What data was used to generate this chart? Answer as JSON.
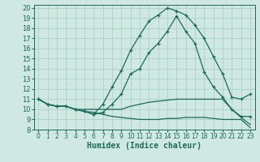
{
  "xlabel": "Humidex (Indice chaleur)",
  "xlim": [
    -0.5,
    23.5
  ],
  "ylim": [
    8,
    20.3
  ],
  "yticks": [
    8,
    9,
    10,
    11,
    12,
    13,
    14,
    15,
    16,
    17,
    18,
    19,
    20
  ],
  "xticks": [
    0,
    1,
    2,
    3,
    4,
    5,
    6,
    7,
    8,
    9,
    10,
    11,
    12,
    13,
    14,
    15,
    16,
    17,
    18,
    19,
    20,
    21,
    22,
    23
  ],
  "bg_color": "#cfe8e2",
  "grid_color": "#b0d4cc",
  "line_color": "#1a6b5a",
  "lines": [
    {
      "x": [
        0,
        1,
        2,
        3,
        4,
        5,
        6,
        7,
        8,
        9,
        10,
        11,
        12,
        13,
        14,
        15,
        16,
        17,
        18,
        19,
        20,
        21,
        22,
        23
      ],
      "y": [
        11,
        10.5,
        10.3,
        10.3,
        10.0,
        9.8,
        9.7,
        9.5,
        9.3,
        9.2,
        9.1,
        9.0,
        9.0,
        9.0,
        9.1,
        9.1,
        9.2,
        9.2,
        9.2,
        9.1,
        9.0,
        9.0,
        9.0,
        8.2
      ],
      "marker": false
    },
    {
      "x": [
        0,
        1,
        2,
        3,
        4,
        5,
        6,
        7,
        8,
        9,
        10,
        11,
        12,
        13,
        14,
        15,
        16,
        17,
        18,
        19,
        20,
        21,
        22,
        23
      ],
      "y": [
        11,
        10.5,
        10.3,
        10.3,
        10.0,
        10.0,
        10.0,
        10.0,
        10.0,
        10.0,
        10.3,
        10.5,
        10.7,
        10.8,
        10.9,
        11.0,
        11.0,
        11.0,
        11.0,
        11.0,
        11.0,
        10.0,
        9.2,
        8.5
      ],
      "marker": false
    },
    {
      "x": [
        0,
        1,
        2,
        3,
        4,
        5,
        6,
        7,
        8,
        9,
        10,
        11,
        12,
        13,
        14,
        15,
        16,
        17,
        18,
        19,
        20,
        21,
        22,
        23
      ],
      "y": [
        11,
        10.5,
        10.3,
        10.3,
        10.0,
        9.8,
        9.5,
        9.7,
        10.5,
        11.5,
        13.5,
        14.0,
        15.6,
        16.5,
        17.7,
        19.2,
        17.7,
        16.5,
        13.7,
        12.2,
        11.2,
        10.0,
        9.3,
        9.3
      ],
      "marker": true
    },
    {
      "x": [
        0,
        1,
        2,
        3,
        4,
        5,
        6,
        7,
        8,
        9,
        10,
        11,
        12,
        13,
        14,
        15,
        16,
        17,
        18,
        19,
        20,
        21,
        22,
        23
      ],
      "y": [
        11,
        10.5,
        10.3,
        10.3,
        10.0,
        9.8,
        9.5,
        10.5,
        12.2,
        13.8,
        15.8,
        17.3,
        18.7,
        19.3,
        20.0,
        19.7,
        19.3,
        18.3,
        17.0,
        15.2,
        13.5,
        11.2,
        11.0,
        11.5
      ],
      "marker": true
    }
  ]
}
